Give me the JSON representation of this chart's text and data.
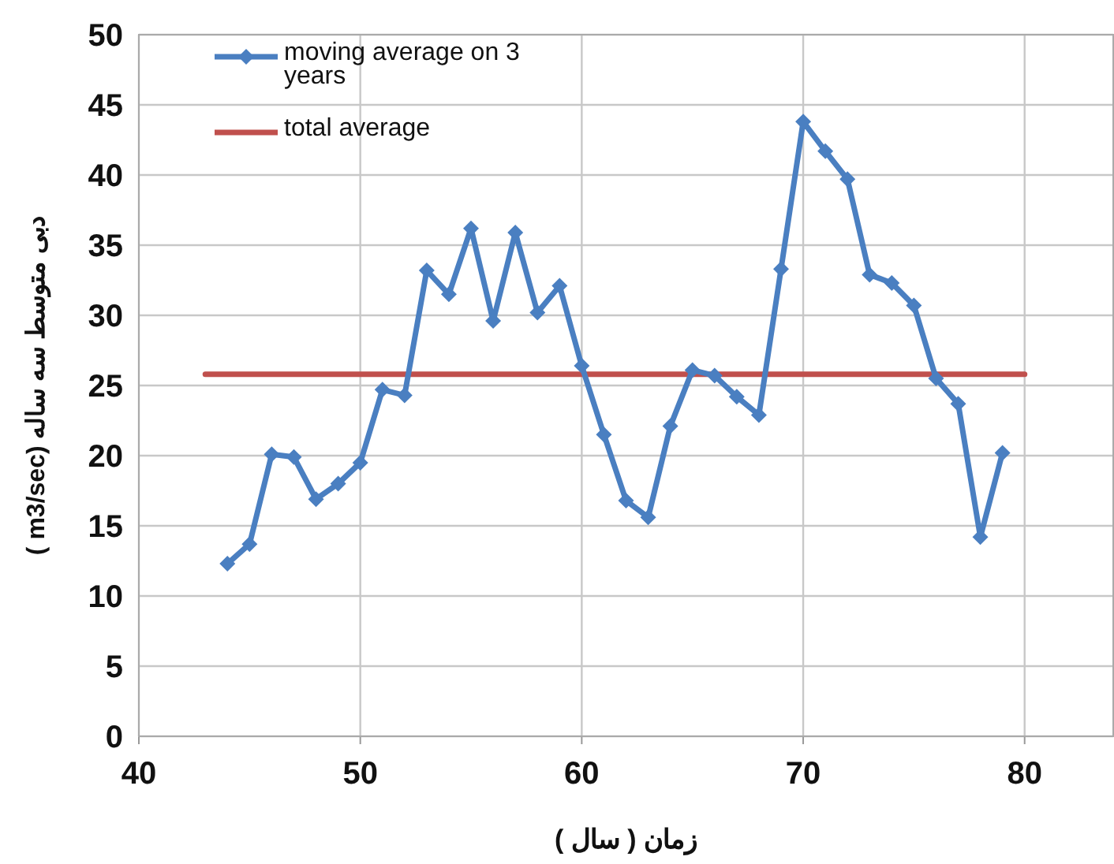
{
  "chart_data": {
    "type": "line",
    "xlabel": "زمان ( سال )",
    "ylabel": "دبی متوسط سه ساله (m3/sec )",
    "xlim": [
      40,
      84
    ],
    "xticks": [
      40,
      50,
      60,
      70,
      80
    ],
    "ylim": [
      0,
      50
    ],
    "yticks": [
      0,
      5,
      10,
      15,
      20,
      25,
      30,
      35,
      40,
      45,
      50
    ],
    "grid": true,
    "legend": "top left",
    "line_style": "solid",
    "series": [
      {
        "name": "moving average on 3 years",
        "color": "#4a7fc1",
        "marker": "diamond",
        "x": [
          44,
          45,
          46,
          47,
          48,
          49,
          50,
          51,
          52,
          53,
          54,
          55,
          56,
          57,
          58,
          59,
          60,
          61,
          62,
          63,
          64,
          65,
          66,
          67,
          68,
          69,
          70,
          71,
          72,
          73,
          74,
          75,
          76,
          77,
          78,
          79
        ],
        "values": [
          12.3,
          13.7,
          20.1,
          19.9,
          16.9,
          18.0,
          19.5,
          24.7,
          24.3,
          33.2,
          31.5,
          36.2,
          29.6,
          35.9,
          30.2,
          32.1,
          26.4,
          21.5,
          16.8,
          15.6,
          22.1,
          26.1,
          25.7,
          24.2,
          22.9,
          33.3,
          43.8,
          41.7,
          39.7,
          32.9,
          32.3,
          30.7,
          25.5,
          23.7,
          14.2,
          20.2
        ]
      },
      {
        "name": "total average",
        "color": "#c0504d",
        "marker": "none",
        "x": [
          43,
          80
        ],
        "values": [
          25.8,
          25.8
        ]
      }
    ]
  }
}
